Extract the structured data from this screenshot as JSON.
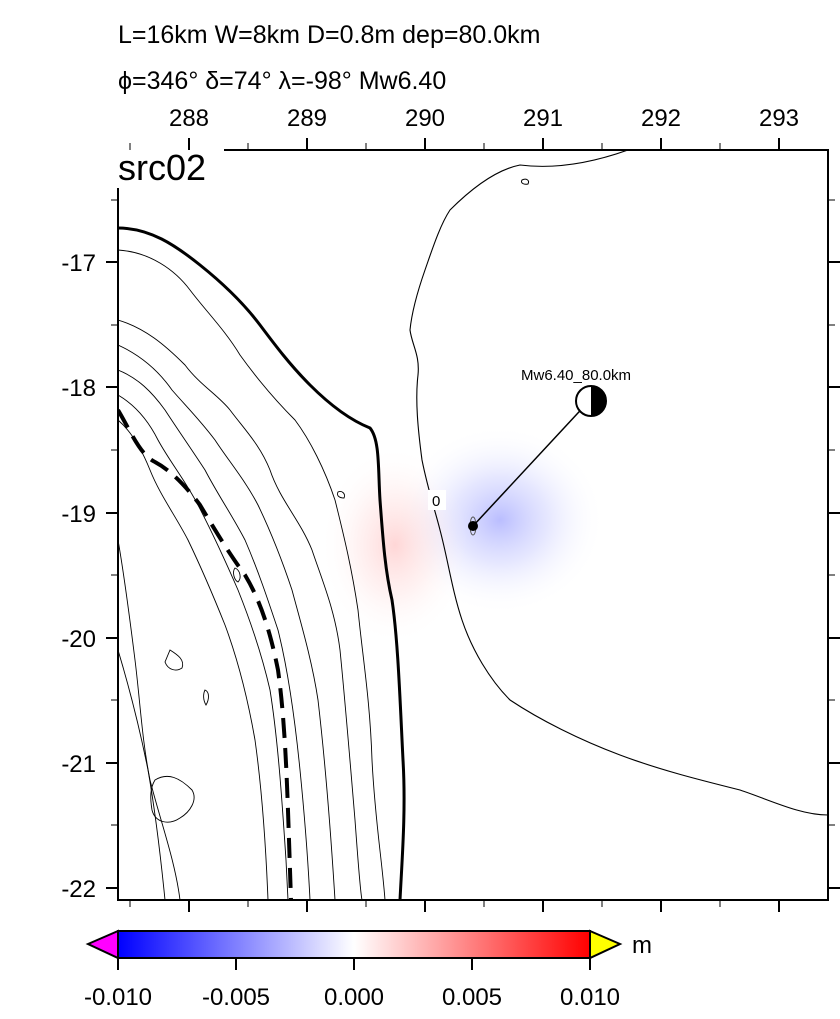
{
  "title": {
    "line1": "L=16km W=8km D=0.8m dep=80.0km",
    "line2": "ϕ=346° δ=74° λ=-98° Mw6.40"
  },
  "map": {
    "panel_label": "src02",
    "lon_ticks": [
      "288",
      "289",
      "290",
      "291",
      "292",
      "293"
    ],
    "lat_ticks": [
      "-17",
      "-18",
      "-19",
      "-20",
      "-21",
      "-22"
    ],
    "zero_contour_label": "0",
    "event_label": "Mw6.40_80.0km",
    "epicenter": {
      "lon": 290.4,
      "lat": -19.1
    },
    "mechanism": {
      "lon": 291.4,
      "lat": -18.1
    },
    "colors": {
      "negative": "#0000ff",
      "positive": "#ff0000",
      "neutral": "#ffffff",
      "below_range": "#ff00ff",
      "above_range": "#ffff00"
    }
  },
  "colorbar": {
    "unit": "m",
    "tick_labels": [
      "-0.010",
      "-0.005",
      "0.000",
      "0.005",
      "0.010"
    ],
    "range": [
      -0.01,
      0.01
    ]
  }
}
